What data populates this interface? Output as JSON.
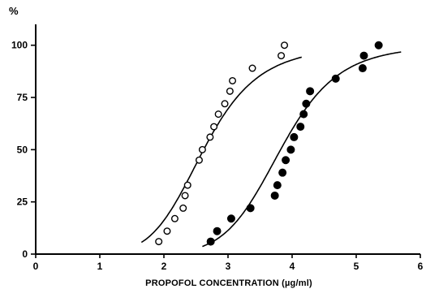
{
  "chart_data": {
    "type": "scatter",
    "ylabel": "%",
    "xlabel": "PROPOFOL CONCENTRATION (µg/ml)",
    "xlim": [
      0,
      6
    ],
    "ylim": [
      0,
      110
    ],
    "x_ticks": [
      "0",
      "1",
      "2",
      "3",
      "4",
      "5",
      "6"
    ],
    "y_ticks": [
      "0",
      "25",
      "50",
      "75",
      "100"
    ],
    "grid": false,
    "legend": "none",
    "series": [
      {
        "marker": "open-circle",
        "points": [
          [
            1.92,
            6
          ],
          [
            2.05,
            11
          ],
          [
            2.17,
            17
          ],
          [
            2.3,
            22
          ],
          [
            2.33,
            28
          ],
          [
            2.37,
            33
          ],
          [
            2.55,
            45
          ],
          [
            2.6,
            50
          ],
          [
            2.72,
            56
          ],
          [
            2.78,
            61
          ],
          [
            2.85,
            67
          ],
          [
            2.95,
            72
          ],
          [
            3.03,
            78
          ],
          [
            3.07,
            83
          ],
          [
            3.38,
            89
          ],
          [
            3.83,
            95
          ],
          [
            3.88,
            100
          ]
        ],
        "fit": {
          "ec50": 2.62,
          "slope": 6.1,
          "x_start": 1.65,
          "x_end": 4.15
        }
      },
      {
        "marker": "filled-circle",
        "points": [
          [
            2.73,
            6
          ],
          [
            2.83,
            11
          ],
          [
            3.05,
            17
          ],
          [
            3.35,
            22
          ],
          [
            3.73,
            28
          ],
          [
            3.77,
            33
          ],
          [
            3.85,
            39
          ],
          [
            3.9,
            45
          ],
          [
            3.98,
            50
          ],
          [
            4.03,
            56
          ],
          [
            4.13,
            61
          ],
          [
            4.18,
            67
          ],
          [
            4.22,
            72
          ],
          [
            4.28,
            78
          ],
          [
            4.68,
            84
          ],
          [
            5.1,
            89
          ],
          [
            5.12,
            95
          ],
          [
            5.35,
            100
          ]
        ],
        "fit": {
          "ec50": 3.82,
          "slope": 8.5,
          "x_start": 2.6,
          "x_end": 5.7
        }
      }
    ]
  }
}
